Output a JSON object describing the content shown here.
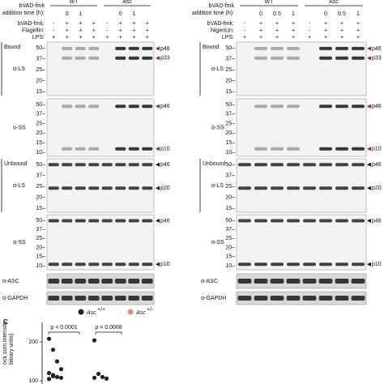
{
  "panels": [
    {
      "genotypes": [
        "WT",
        "Asc"
      ],
      "time_label": [
        "bVAD-fmk",
        "addition time (h):"
      ],
      "times": [
        null,
        "0",
        "1",
        null,
        null,
        "0",
        "1",
        null
      ],
      "rows": [
        {
          "label": "bVAD-fmk:",
          "signs": [
            "-",
            "+",
            "+",
            "+",
            "-",
            "+",
            "+",
            "+"
          ]
        },
        {
          "label": "Flagellin:",
          "signs": [
            "-",
            "+",
            "+",
            "+",
            "-",
            "+",
            "+",
            "+"
          ]
        },
        {
          "label": "LPS:",
          "signs": [
            "+",
            "+",
            "+",
            "+",
            "+",
            "+",
            "+",
            "+"
          ]
        }
      ],
      "blots": [
        {
          "section": "Bound",
          "antibody": "α-LS",
          "markers": [
            "50–",
            "37–",
            "25–",
            "20–",
            "15–"
          ],
          "bands": [
            {
              "label": "p46",
              "color": "#a3202c"
            },
            {
              "label": "p33",
              "color": "#a3202c"
            }
          ]
        },
        {
          "antibody": "α-SS",
          "markers": [
            "50–",
            "37–",
            "25–",
            "20–",
            "15–",
            "10–"
          ],
          "bands": [
            {
              "label": "p46",
              "color": "#a3202c"
            },
            {
              "label": "p10",
              "color": "#a3202c"
            }
          ]
        },
        {
          "section": "Unbound",
          "antibody": "α-LS",
          "markers": [
            "50–",
            "37–",
            "25–",
            "20–",
            "15–"
          ],
          "bands": [
            {
              "label": "p46",
              "color": "#111111"
            },
            {
              "label": "p20",
              "color": "#111111"
            }
          ]
        },
        {
          "antibody": "α-SS",
          "markers": [
            "50–",
            "37–",
            "25–",
            "20–",
            "15–",
            "10–"
          ],
          "bands": [
            {
              "label": "p46",
              "color": "#111111"
            },
            {
              "label": "p10",
              "color": "#111111"
            }
          ]
        },
        {
          "antibody": "α-ASC",
          "markers": [],
          "bands": []
        },
        {
          "antibody": "α-GAPDH",
          "markers": [],
          "bands": []
        }
      ]
    },
    {
      "genotypes": [
        "WT",
        "Asc"
      ],
      "time_label": [
        "bVAD-fmk",
        "addition time (h):"
      ],
      "times": [
        null,
        "0",
        "0.5",
        "1",
        null,
        "0",
        "0.5",
        "1"
      ],
      "rows": [
        {
          "label": "bVAD-fmk:",
          "signs": [
            "-",
            "+",
            "+",
            "+",
            "-",
            "+",
            "+",
            "+"
          ]
        },
        {
          "label": "Nigericin:",
          "signs": [
            "-",
            "+",
            "+",
            "+",
            "-",
            "+",
            "+",
            "+"
          ]
        },
        {
          "label": "LPS:",
          "signs": [
            "+",
            "+",
            "+",
            "+",
            "+",
            "+",
            "+",
            "+"
          ]
        }
      ],
      "blots": [
        {
          "section": "Bound",
          "antibody": "α-LS",
          "markers": [
            "50–",
            "37–",
            "25–",
            "20–",
            "15–"
          ],
          "bands": [
            {
              "label": "p46",
              "color": "#a3202c"
            },
            {
              "label": "p33",
              "color": "#a3202c"
            }
          ]
        },
        {
          "antibody": "α-SS",
          "markers": [
            "50–",
            "37–",
            "25–",
            "20–",
            "15–",
            "10–"
          ],
          "bands": [
            {
              "label": "p46",
              "color": "#a3202c"
            },
            {
              "label": "p10",
              "color": "#a3202c"
            }
          ]
        },
        {
          "section": "Unbound",
          "antibody": "α-LS",
          "markers": [
            "50–",
            "37–",
            "25–",
            "20–",
            "15–"
          ],
          "bands": [
            {
              "label": "p46",
              "color": "#111111"
            },
            {
              "label": "p20",
              "color": "#111111"
            }
          ]
        },
        {
          "antibody": "α-SS",
          "markers": [
            "50–",
            "37–",
            "25–",
            "20–",
            "15–",
            "10–"
          ],
          "bands": [
            {
              "label": "p46",
              "color": "#111111"
            },
            {
              "label": "p10",
              "color": "#111111"
            }
          ]
        },
        {
          "antibody": "α-ASC",
          "markers": [],
          "bands": []
        },
        {
          "antibody": "α-GAPDH",
          "markers": [],
          "bands": []
        }
      ]
    }
  ],
  "panel_c": {
    "letter": "C",
    "type": "scatter",
    "ylabel": [
      "ock sum intensity",
      "bitrary units)"
    ],
    "ylim": [
      92,
      250
    ],
    "yticks": [
      100,
      200
    ],
    "series": [
      {
        "name": "Asc",
        "sup": "+/+",
        "color": "#222222",
        "groups": [
          [
            208,
            180,
            150,
            130,
            120,
            115,
            110,
            108,
            105,
            112
          ],
          [
            204,
            118,
            110,
            106,
            108
          ]
        ]
      },
      {
        "name": "Asc",
        "sup": "+/-",
        "color": "#e0907e",
        "groups": [
          [],
          []
        ]
      }
    ],
    "stats": [
      "p < 0.0001",
      "p = 0.0008"
    ]
  }
}
